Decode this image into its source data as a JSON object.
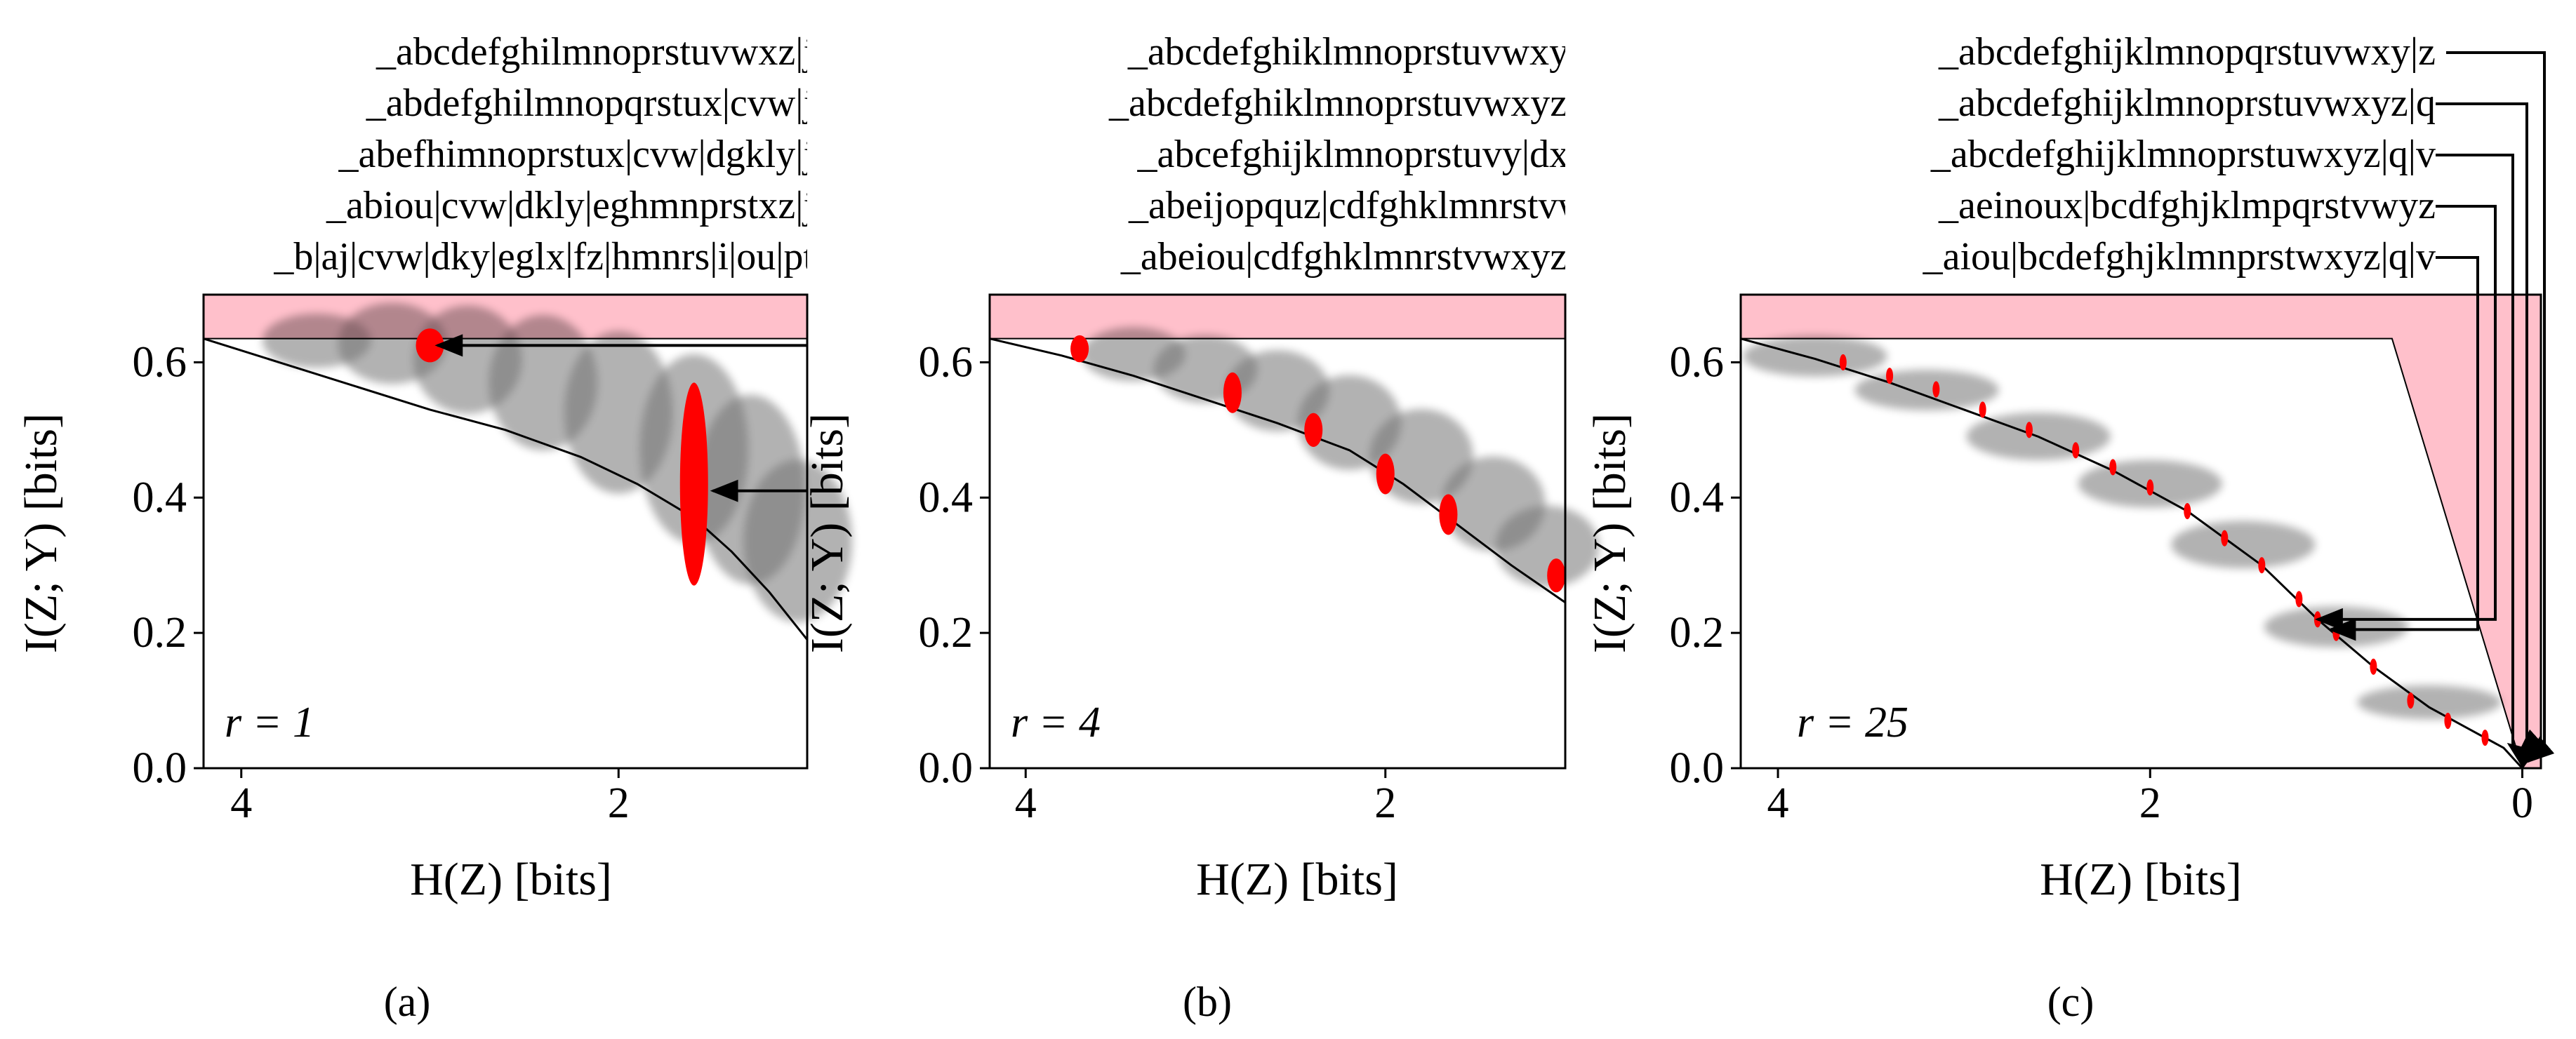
{
  "colors": {
    "feasible": "#ffc0cb",
    "cloud": "#000000",
    "highlight": "#ff0000",
    "frontier": "#000000"
  },
  "chart_data": [
    {
      "type": "scatter",
      "panel": "(a)",
      "annotation": "r = 1",
      "xlabel": "H(Z) [bits]",
      "ylabel": "I(Z; Y) [bits]",
      "xlim": [
        4.2,
        1.0
      ],
      "ylim": [
        0.0,
        0.7
      ],
      "xticks": [
        "4",
        "2"
      ],
      "yticks": [
        "0.0",
        "0.2",
        "0.4",
        "0.6"
      ],
      "grid": false,
      "feasible_region_top": 0.635,
      "frontier": {
        "x": [
          4.2,
          3.8,
          3.4,
          3.0,
          2.6,
          2.2,
          1.9,
          1.6,
          1.4,
          1.2,
          1.0
        ],
        "y": [
          0.635,
          0.6,
          0.565,
          0.53,
          0.5,
          0.46,
          0.42,
          0.37,
          0.32,
          0.26,
          0.19
        ]
      },
      "cloud": [
        {
          "x": 3.6,
          "y": 0.62,
          "h": 0.04
        },
        {
          "x": 3.2,
          "y": 0.61,
          "h": 0.06
        },
        {
          "x": 2.8,
          "y": 0.58,
          "h": 0.08
        },
        {
          "x": 2.4,
          "y": 0.54,
          "h": 0.1
        },
        {
          "x": 2.0,
          "y": 0.49,
          "h": 0.12
        },
        {
          "x": 1.6,
          "y": 0.43,
          "h": 0.14
        },
        {
          "x": 1.3,
          "y": 0.37,
          "h": 0.14
        },
        {
          "x": 1.05,
          "y": 0.3,
          "h": 0.12
        }
      ],
      "highlighted": [
        {
          "x": 3.0,
          "y": 0.625,
          "h": 0.025
        },
        {
          "x": 1.6,
          "y": 0.42,
          "h": 0.15
        }
      ],
      "partition_labels": [
        "_abcdefghilmnoprstuvwxz|j",
        "_abdefghilmnopqrstux|cvw|j",
        "_abefhimnoprstux|cvw|dgkly|j",
        "_abiou|cvw|dkly|eghmnprstxz|j",
        "_b|aj|cvw|dky|eglx|fz|hmnrs|i|ou|pt"
      ],
      "arrows": [
        {
          "to_x": 2.96,
          "to_y": 0.625
        },
        {
          "to_x": 1.5,
          "to_y": 0.41
        }
      ]
    },
    {
      "type": "scatter",
      "panel": "(b)",
      "annotation": "r = 4",
      "xlabel": "H(Z) [bits]",
      "ylabel": "I(Z; Y) [bits]",
      "xlim": [
        4.2,
        1.0
      ],
      "ylim": [
        0.0,
        0.7
      ],
      "xticks": [
        "4",
        "2"
      ],
      "yticks": [
        "0.0",
        "0.2",
        "0.4",
        "0.6"
      ],
      "grid": false,
      "feasible_region_top": 0.635,
      "frontier": {
        "x": [
          4.2,
          3.8,
          3.4,
          3.0,
          2.6,
          2.2,
          1.9,
          1.6,
          1.3,
          1.0
        ],
        "y": [
          0.635,
          0.61,
          0.58,
          0.545,
          0.51,
          0.47,
          0.42,
          0.36,
          0.3,
          0.245
        ]
      },
      "cloud": [
        {
          "x": 3.4,
          "y": 0.6,
          "h": 0.04
        },
        {
          "x": 3.0,
          "y": 0.575,
          "h": 0.05
        },
        {
          "x": 2.6,
          "y": 0.54,
          "h": 0.06
        },
        {
          "x": 2.2,
          "y": 0.49,
          "h": 0.07
        },
        {
          "x": 1.8,
          "y": 0.44,
          "h": 0.07
        },
        {
          "x": 1.4,
          "y": 0.37,
          "h": 0.07
        },
        {
          "x": 1.1,
          "y": 0.31,
          "h": 0.06
        }
      ],
      "highlighted": [
        {
          "x": 3.7,
          "y": 0.62,
          "h": 0.02
        },
        {
          "x": 2.85,
          "y": 0.555,
          "h": 0.03
        },
        {
          "x": 2.4,
          "y": 0.5,
          "h": 0.025
        },
        {
          "x": 2.0,
          "y": 0.435,
          "h": 0.03
        },
        {
          "x": 1.65,
          "y": 0.375,
          "h": 0.03
        },
        {
          "x": 1.05,
          "y": 0.285,
          "h": 0.025
        }
      ],
      "partition_labels": [
        "_abcdefghiklmnoprstuvwxyz",
        "_abcdefghiklmnoprstuvwxyz|j",
        "_abcefghijklmnoprstuvy|dxz",
        "_abeijopquz|cdfghklmnrstvw",
        "_abeiou|cdfghklmnrstvwxyz|j"
      ],
      "arrows": []
    },
    {
      "type": "scatter",
      "panel": "(c)",
      "annotation": "r = 25",
      "xlabel": "H(Z) [bits]",
      "ylabel": "I(Z; Y) [bits]",
      "xlim": [
        4.2,
        -0.1
      ],
      "ylim": [
        0.0,
        0.7
      ],
      "xticks": [
        "4",
        "2",
        "0"
      ],
      "yticks": [
        "0.0",
        "0.2",
        "0.4",
        "0.6"
      ],
      "grid": false,
      "feasible_region_top": 0.635,
      "frontier": {
        "x": [
          4.2,
          3.8,
          3.4,
          3.0,
          2.6,
          2.2,
          1.8,
          1.4,
          1.1,
          0.8,
          0.5,
          0.3,
          0.1,
          0.0
        ],
        "y": [
          0.635,
          0.605,
          0.57,
          0.53,
          0.49,
          0.44,
          0.38,
          0.3,
          0.22,
          0.15,
          0.09,
          0.06,
          0.03,
          0.0
        ]
      },
      "cloud": [
        {
          "x": 3.8,
          "y": 0.6,
          "h": 0.03
        },
        {
          "x": 3.2,
          "y": 0.55,
          "h": 0.03
        },
        {
          "x": 2.6,
          "y": 0.48,
          "h": 0.035
        },
        {
          "x": 2.0,
          "y": 0.41,
          "h": 0.035
        },
        {
          "x": 1.5,
          "y": 0.32,
          "h": 0.035
        },
        {
          "x": 1.0,
          "y": 0.2,
          "h": 0.03
        },
        {
          "x": 0.5,
          "y": 0.09,
          "h": 0.025
        }
      ],
      "highlighted": [
        {
          "x": 3.65,
          "y": 0.6,
          "h": 0.012
        },
        {
          "x": 3.4,
          "y": 0.58,
          "h": 0.012
        },
        {
          "x": 3.15,
          "y": 0.56,
          "h": 0.012
        },
        {
          "x": 2.9,
          "y": 0.53,
          "h": 0.012
        },
        {
          "x": 2.65,
          "y": 0.5,
          "h": 0.012
        },
        {
          "x": 2.4,
          "y": 0.47,
          "h": 0.012
        },
        {
          "x": 2.2,
          "y": 0.445,
          "h": 0.012
        },
        {
          "x": 2.0,
          "y": 0.415,
          "h": 0.012
        },
        {
          "x": 1.8,
          "y": 0.38,
          "h": 0.012
        },
        {
          "x": 1.6,
          "y": 0.34,
          "h": 0.012
        },
        {
          "x": 1.4,
          "y": 0.3,
          "h": 0.012
        },
        {
          "x": 1.2,
          "y": 0.25,
          "h": 0.012
        },
        {
          "x": 1.1,
          "y": 0.22,
          "h": 0.012
        },
        {
          "x": 1.0,
          "y": 0.2,
          "h": 0.012
        },
        {
          "x": 0.8,
          "y": 0.15,
          "h": 0.012
        },
        {
          "x": 0.6,
          "y": 0.1,
          "h": 0.012
        },
        {
          "x": 0.4,
          "y": 0.07,
          "h": 0.012
        },
        {
          "x": 0.2,
          "y": 0.045,
          "h": 0.012
        }
      ],
      "partition_labels": [
        "_abcdefghijklmnopqrstuvwxy|z",
        "_abcdefghijklmnoprstuvwxyz|q",
        "_abcdefghijklmnoprstuwxyz|q|v",
        "_aeinoux|bcdfghjklmpqrstvwyz",
        "_aiou|bcdefghjklmnprstwxyz|q|v"
      ],
      "arrows": [
        {
          "to_x": -0.03,
          "to_y": 0.01
        },
        {
          "to_x": 0.02,
          "to_y": 0.02
        },
        {
          "to_x": 0.07,
          "to_y": 0.035
        },
        {
          "to_x": 1.1,
          "to_y": 0.22
        },
        {
          "to_x": 1.03,
          "to_y": 0.205
        }
      ]
    }
  ]
}
